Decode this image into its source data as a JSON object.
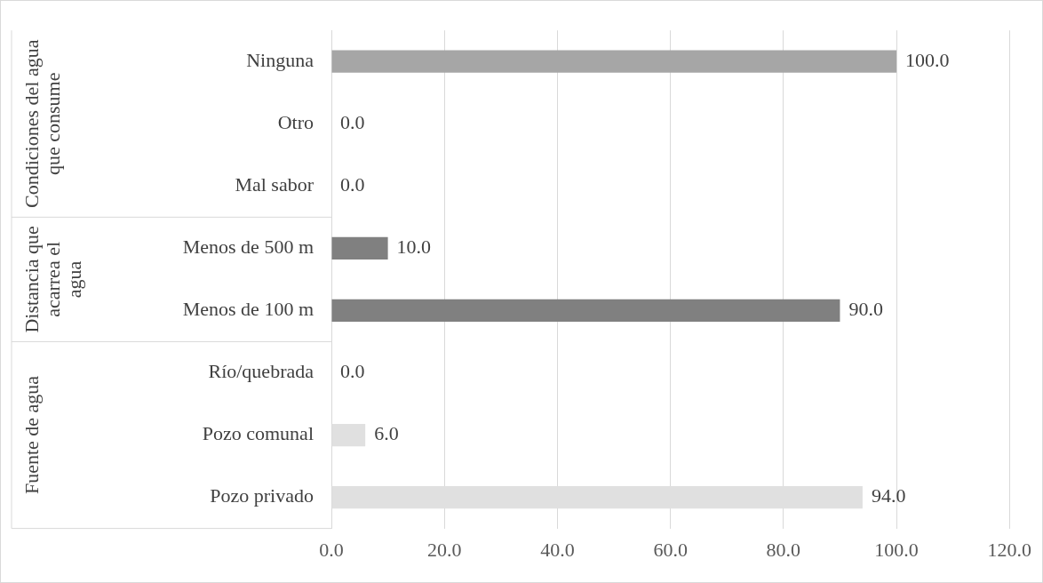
{
  "chart_data": {
    "type": "bar",
    "orientation": "horizontal",
    "categories": [
      "Ninguna",
      "Otro",
      "Mal sabor",
      "Menos de 500 m",
      "Menos de 100 m",
      "Río/quebrada",
      "Pozo comunal",
      "Pozo privado"
    ],
    "values": [
      100,
      0,
      0,
      10,
      90,
      0,
      6,
      94
    ],
    "colors": [
      "#a6a6a6",
      "#a6a6a6",
      "#a6a6a6",
      "#808080",
      "#808080",
      "#e0e0e0",
      "#e0e0e0",
      "#e0e0e0"
    ],
    "value_labels": [
      "100.0",
      "0.0",
      "0.0",
      "10.0",
      "90.0",
      "0.0",
      "6.0",
      "94.0"
    ],
    "xlim": [
      0,
      120
    ],
    "xticks": [
      {
        "value": 0,
        "label": "0.0"
      },
      {
        "value": 20,
        "label": "20.0"
      },
      {
        "value": 40,
        "label": "40.0"
      },
      {
        "value": 60,
        "label": "60.0"
      },
      {
        "value": 80,
        "label": "80.0"
      },
      {
        "value": 100,
        "label": "100.0"
      },
      {
        "value": 120,
        "label": "120.0"
      }
    ],
    "grid": "x",
    "annotations": [
      "Condiciones del agua que consume",
      "Distancia que acarrea el agua",
      "Fuente de agua"
    ]
  }
}
